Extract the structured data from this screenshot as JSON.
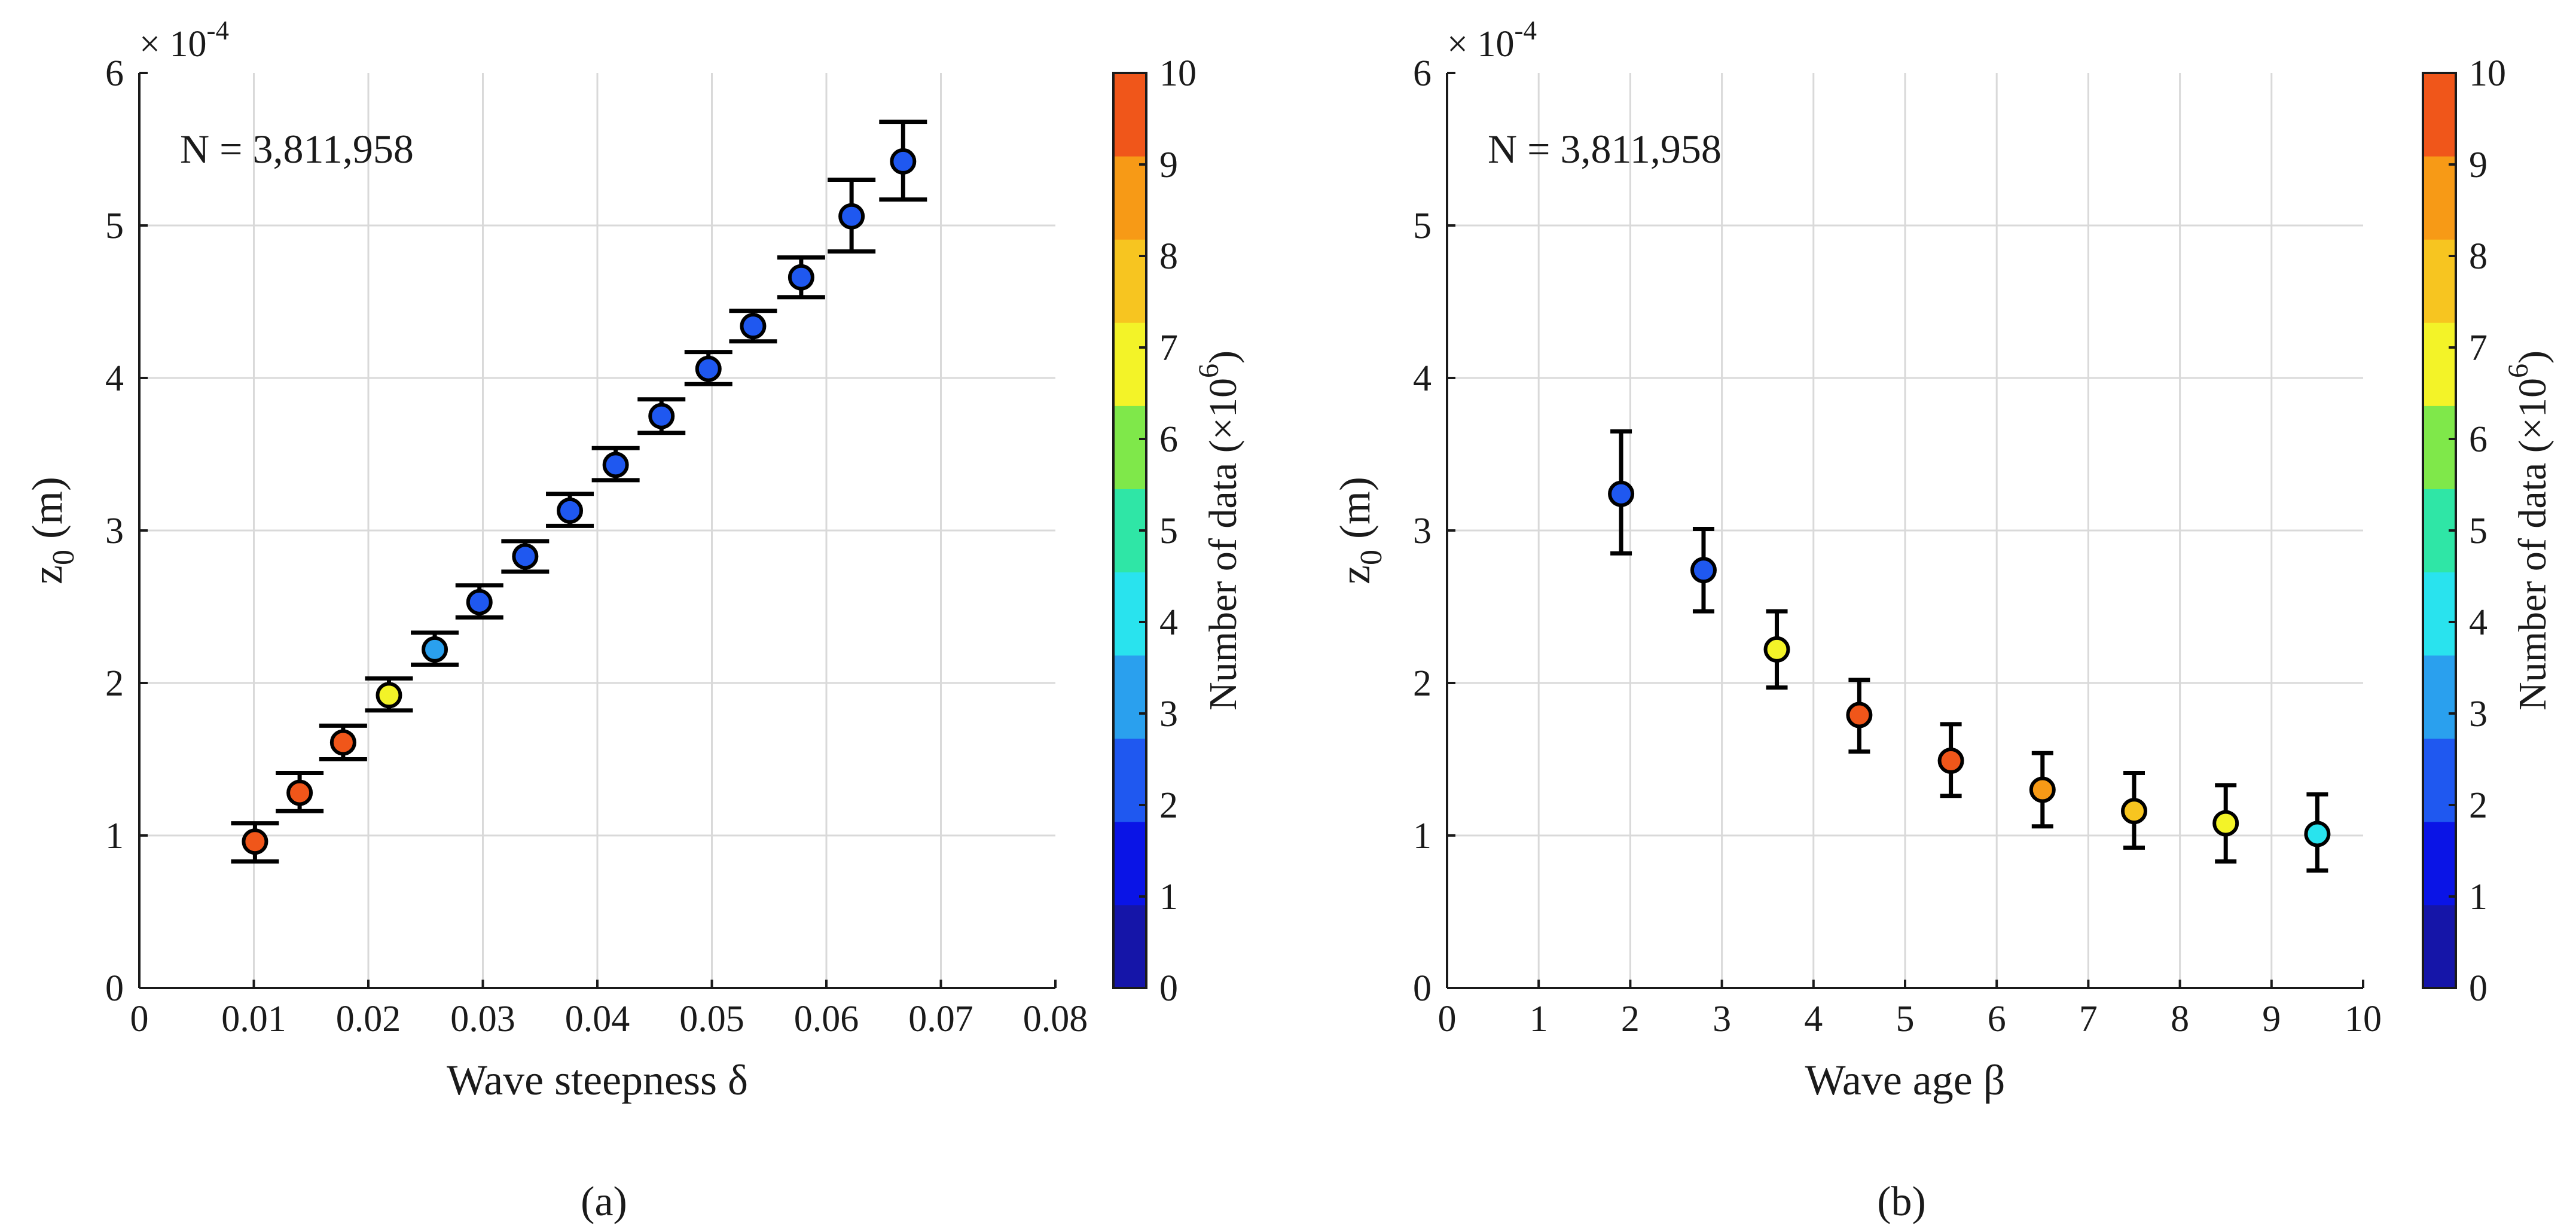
{
  "chart_data": [
    {
      "type": "scatter",
      "panel_label": "(a)",
      "annotation": "N = 3,811,958",
      "xlabel": "Wave steepness δ",
      "ylabel": "z_0 (m)",
      "y_multiplier": "× 10^-4",
      "xlim": [
        0,
        0.08
      ],
      "ylim": [
        0,
        6
      ],
      "x_ticks": [
        0,
        0.01,
        0.02,
        0.03,
        0.04,
        0.05,
        0.06,
        0.07,
        0.08
      ],
      "y_ticks": [
        0,
        1,
        2,
        3,
        4,
        5,
        6
      ],
      "grid": true,
      "error_bars": true,
      "colorbar": {
        "label": "Number of data (×10^6)",
        "range": [
          0,
          10
        ],
        "ticks": [
          0,
          1,
          2,
          3,
          4,
          5,
          6,
          7,
          8,
          9,
          10
        ],
        "colors": [
          "#1515a8",
          "#0a14e6",
          "#1f58f0",
          "#2aa0ee",
          "#29e3ee",
          "#2fe6a6",
          "#7fe84a",
          "#f3f328",
          "#f7c520",
          "#f79a16",
          "#f0561a"
        ]
      },
      "points": [
        {
          "x": 0.0101,
          "y": 0.96,
          "err_low": 0.83,
          "err_high": 1.08,
          "count": 9.5
        },
        {
          "x": 0.014,
          "y": 1.28,
          "err_low": 1.16,
          "err_high": 1.41,
          "count": 9.5
        },
        {
          "x": 0.0178,
          "y": 1.61,
          "err_low": 1.5,
          "err_high": 1.72,
          "count": 9.5
        },
        {
          "x": 0.0218,
          "y": 1.92,
          "err_low": 1.82,
          "err_high": 2.03,
          "count": 6.5
        },
        {
          "x": 0.0258,
          "y": 2.22,
          "err_low": 2.12,
          "err_high": 2.33,
          "count": 3.5
        },
        {
          "x": 0.0297,
          "y": 2.53,
          "err_low": 2.43,
          "err_high": 2.64,
          "count": 2.5
        },
        {
          "x": 0.0337,
          "y": 2.83,
          "err_low": 2.73,
          "err_high": 2.93,
          "count": 2.5
        },
        {
          "x": 0.0376,
          "y": 3.13,
          "err_low": 3.03,
          "err_high": 3.24,
          "count": 2.5
        },
        {
          "x": 0.0416,
          "y": 3.43,
          "err_low": 3.33,
          "err_high": 3.54,
          "count": 2.5
        },
        {
          "x": 0.0456,
          "y": 3.75,
          "err_low": 3.64,
          "err_high": 3.86,
          "count": 2.5
        },
        {
          "x": 0.0497,
          "y": 4.06,
          "err_low": 3.96,
          "err_high": 4.17,
          "count": 2.5
        },
        {
          "x": 0.0536,
          "y": 4.34,
          "err_low": 4.24,
          "err_high": 4.44,
          "count": 2.5
        },
        {
          "x": 0.0578,
          "y": 4.66,
          "err_low": 4.53,
          "err_high": 4.79,
          "count": 2.5
        },
        {
          "x": 0.0622,
          "y": 5.06,
          "err_low": 4.83,
          "err_high": 5.3,
          "count": 2.5
        },
        {
          "x": 0.0667,
          "y": 5.42,
          "err_low": 5.17,
          "err_high": 5.68,
          "count": 2.5
        }
      ]
    },
    {
      "type": "scatter",
      "panel_label": "(b)",
      "annotation": "N = 3,811,958",
      "xlabel": "Wave age β",
      "ylabel": "z_0 (m)",
      "y_multiplier": "× 10^-4",
      "xlim": [
        0,
        10
      ],
      "ylim": [
        0,
        6
      ],
      "x_ticks": [
        0,
        1,
        2,
        3,
        4,
        5,
        6,
        7,
        8,
        9,
        10
      ],
      "y_ticks": [
        0,
        1,
        2,
        3,
        4,
        5,
        6
      ],
      "grid": true,
      "error_bars": true,
      "colorbar": {
        "label": "Number of data (×10^6)",
        "range": [
          0,
          10
        ],
        "ticks": [
          0,
          1,
          2,
          3,
          4,
          5,
          6,
          7,
          8,
          9,
          10
        ],
        "colors": [
          "#1515a8",
          "#0a14e6",
          "#1f58f0",
          "#2aa0ee",
          "#29e3ee",
          "#2fe6a6",
          "#7fe84a",
          "#f3f328",
          "#f7c520",
          "#f79a16",
          "#f0561a"
        ]
      },
      "points": [
        {
          "x": 1.9,
          "y": 3.24,
          "err_low": 2.85,
          "err_high": 3.65,
          "count": 2.5
        },
        {
          "x": 2.8,
          "y": 2.74,
          "err_low": 2.47,
          "err_high": 3.01,
          "count": 2.5
        },
        {
          "x": 3.6,
          "y": 2.22,
          "err_low": 1.97,
          "err_high": 2.47,
          "count": 6.5
        },
        {
          "x": 4.5,
          "y": 1.79,
          "err_low": 1.55,
          "err_high": 2.02,
          "count": 9.5
        },
        {
          "x": 5.5,
          "y": 1.49,
          "err_low": 1.26,
          "err_high": 1.73,
          "count": 9.5
        },
        {
          "x": 6.5,
          "y": 1.3,
          "err_low": 1.06,
          "err_high": 1.54,
          "count": 8.5
        },
        {
          "x": 7.5,
          "y": 1.16,
          "err_low": 0.92,
          "err_high": 1.41,
          "count": 7.5
        },
        {
          "x": 8.5,
          "y": 1.08,
          "err_low": 0.83,
          "err_high": 1.33,
          "count": 6.5
        },
        {
          "x": 9.5,
          "y": 1.01,
          "err_low": 0.77,
          "err_high": 1.27,
          "count": 4.5
        }
      ]
    }
  ]
}
